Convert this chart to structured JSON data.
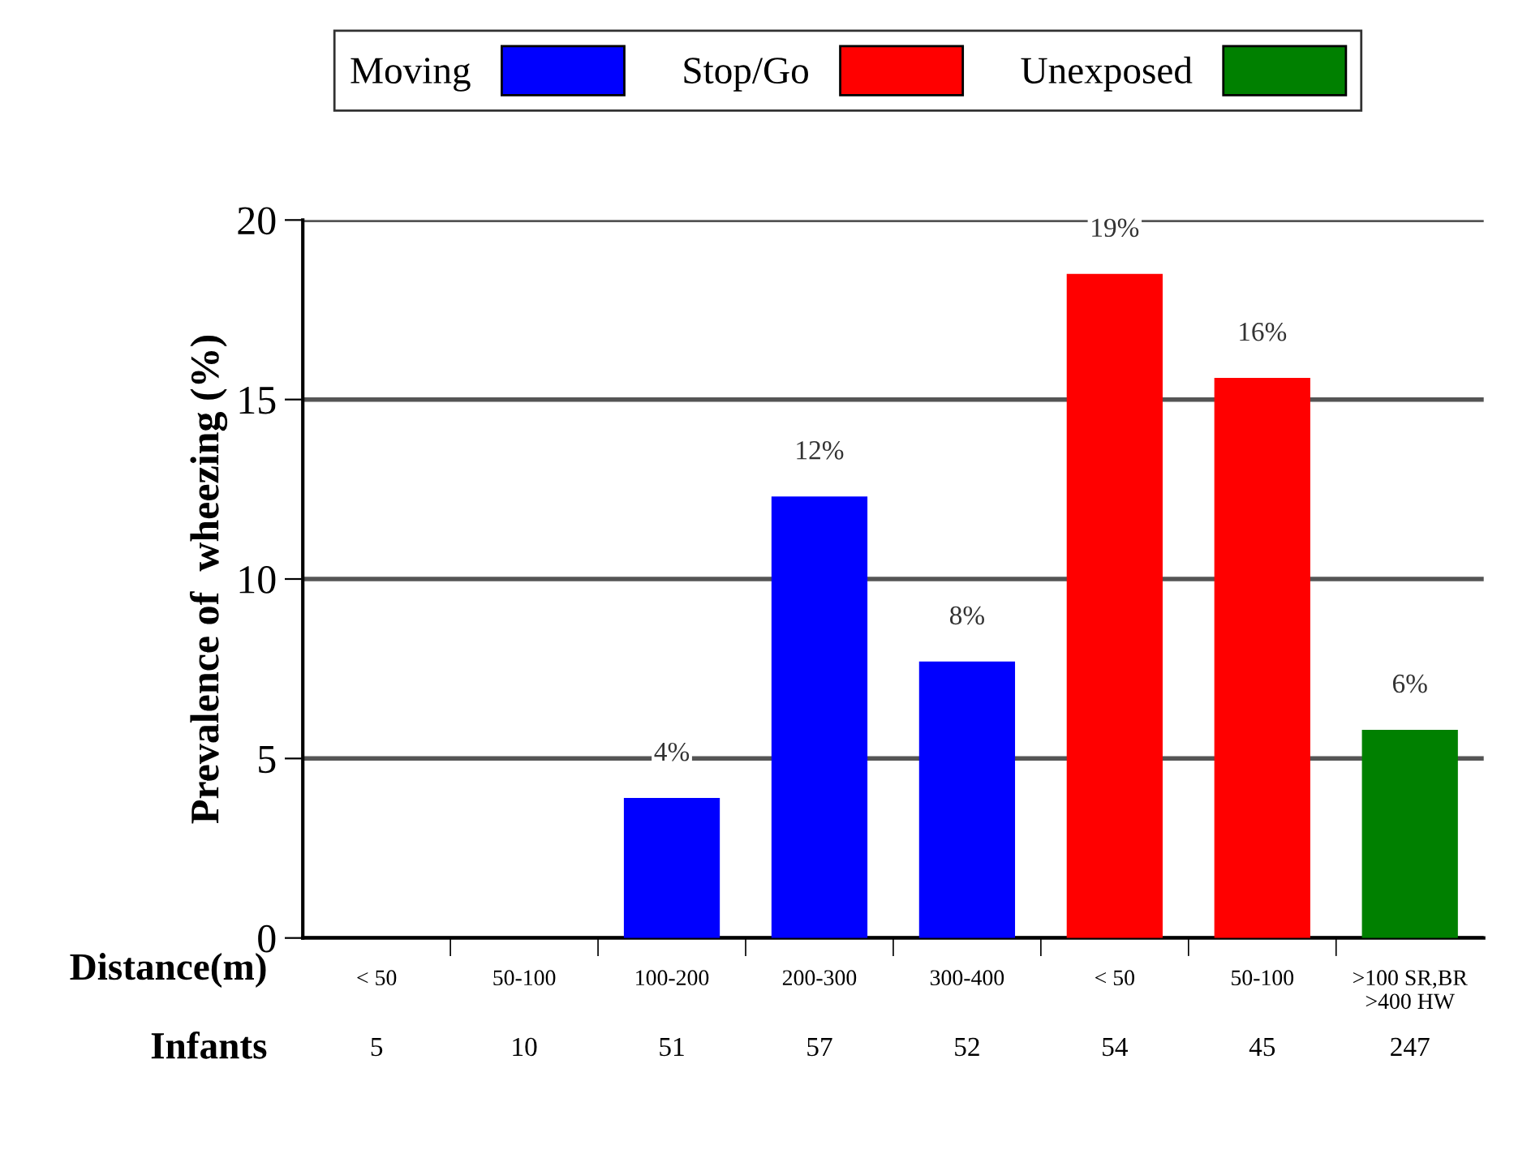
{
  "chart_data": {
    "type": "bar",
    "ylabel": "Prevalence of  wheezing (%)",
    "xlabel": "Distance(m)",
    "categories": [
      "< 50",
      "50-100",
      "100-200",
      "200-300",
      "300-400",
      "< 50",
      "50-100",
      ">100 SR,BR\n>400 HW"
    ],
    "series": [
      {
        "name": "Moving",
        "color": "#0000ff",
        "values": [
          0,
          0,
          3.9,
          12.3,
          7.7,
          null,
          null,
          null
        ],
        "value_labels": [
          null,
          null,
          "4%",
          "12%",
          "8%",
          null,
          null,
          null
        ]
      },
      {
        "name": "Stop/Go",
        "color": "#ff0000",
        "values": [
          null,
          null,
          null,
          null,
          null,
          18.5,
          15.6,
          null
        ],
        "value_labels": [
          null,
          null,
          null,
          null,
          null,
          "19%",
          "16%",
          null
        ]
      },
      {
        "name": "Unexposed",
        "color": "#008000",
        "values": [
          null,
          null,
          null,
          null,
          null,
          null,
          null,
          5.8
        ],
        "value_labels": [
          null,
          null,
          null,
          null,
          null,
          null,
          null,
          "6%"
        ]
      }
    ],
    "annotations": [
      "Infants",
      "5",
      "10",
      "51",
      "57",
      "52",
      "54",
      "45",
      "247"
    ],
    "ylim": [
      0,
      20
    ],
    "yticks": [
      0,
      5,
      10,
      15,
      20
    ],
    "grid": "y",
    "legend": "top"
  }
}
